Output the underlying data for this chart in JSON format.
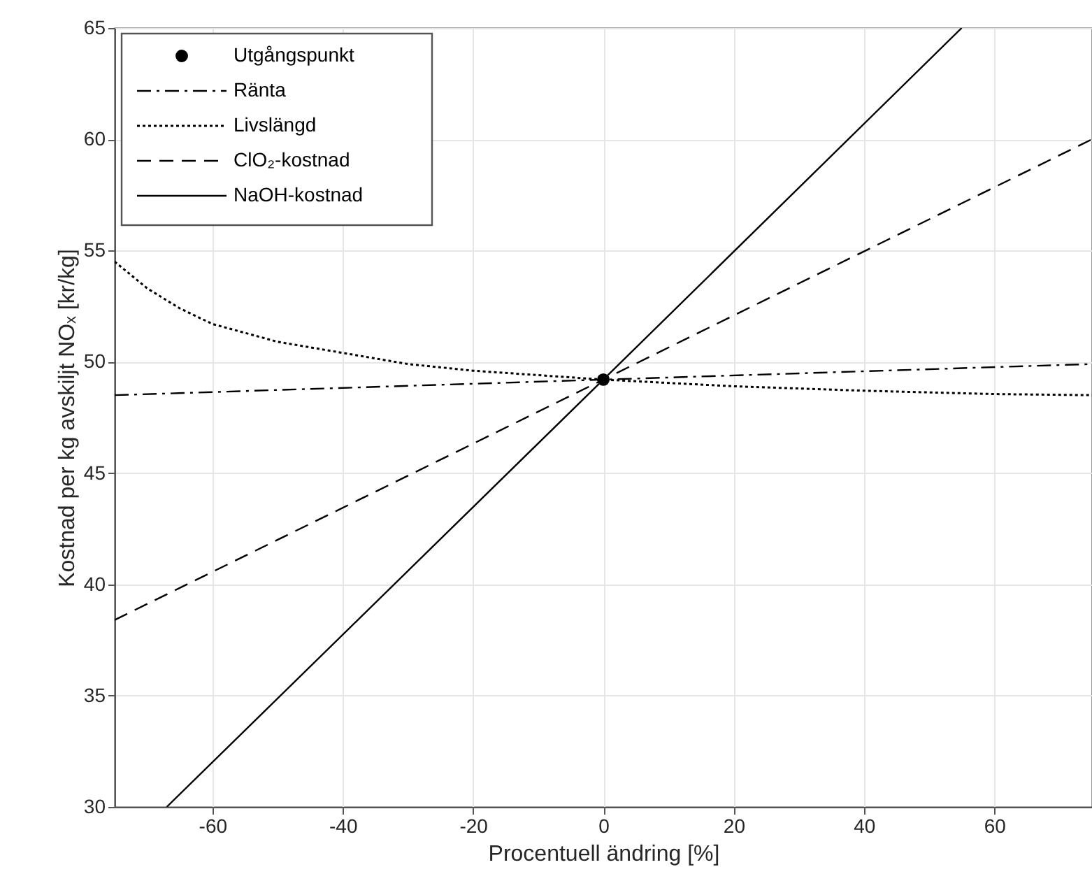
{
  "chart_data": {
    "type": "line",
    "xlabel": "Procentuell ändring [%]",
    "ylabel": "Kostnad per kg avskiljt NOₓ [kr/kg]",
    "xlim": [
      -75,
      75
    ],
    "xticks": [
      -60,
      -40,
      -20,
      0,
      20,
      40,
      60
    ],
    "ylim": [
      30,
      65
    ],
    "yticks": [
      30,
      35,
      40,
      45,
      50,
      55,
      60,
      65
    ],
    "grid": true,
    "legend": "top left",
    "series": [
      {
        "name": "Utgångspunkt",
        "type": "scatter",
        "marker": "circle",
        "color": "#000000",
        "x": [
          0
        ],
        "values": [
          49.2
        ]
      },
      {
        "name": "Ränta",
        "line_style": "dashdot",
        "color": "#000000",
        "x": [
          -75,
          75
        ],
        "values": [
          48.5,
          49.9
        ]
      },
      {
        "name": "Livslängd",
        "line_style": "dotted",
        "color": "#000000",
        "x": [
          -75,
          -70,
          -65,
          -60,
          -50,
          -40,
          -30,
          -20,
          -10,
          0,
          20,
          40,
          60,
          75
        ],
        "values": [
          54.5,
          53.3,
          52.4,
          51.7,
          50.9,
          50.4,
          49.9,
          49.6,
          49.4,
          49.2,
          48.9,
          48.7,
          48.55,
          48.5
        ]
      },
      {
        "name": "ClO₂-kostnad",
        "line_style": "dashed",
        "color": "#000000",
        "x": [
          -75,
          75
        ],
        "values": [
          38.4,
          60.0
        ]
      },
      {
        "name": "NaOH-kostnad",
        "line_style": "solid",
        "color": "#000000",
        "x": [
          -67,
          0,
          55
        ],
        "values": [
          30,
          49.2,
          65
        ]
      }
    ]
  }
}
